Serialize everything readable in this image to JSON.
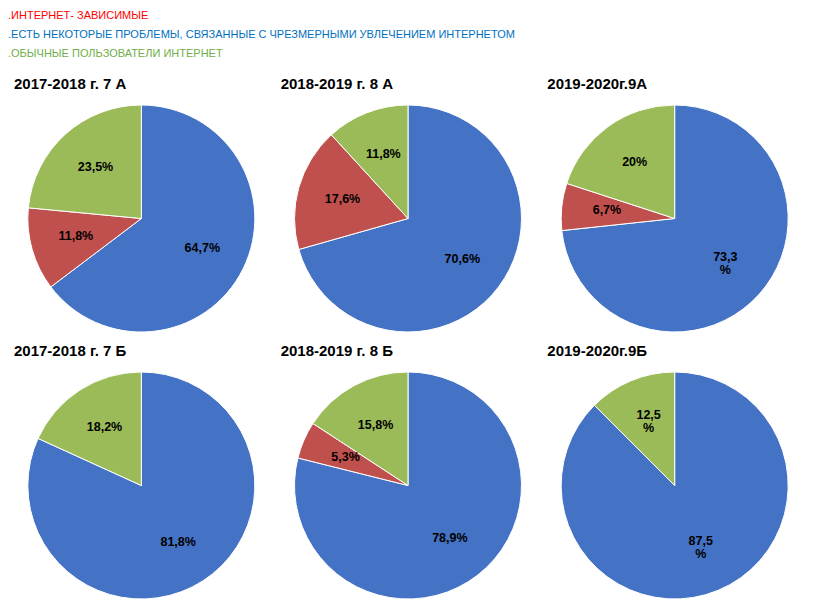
{
  "chart_data": [
    {
      "type": "pie",
      "title": "2017-2018 г. 7 А",
      "values": [
        64.7,
        11.8,
        23.5
      ],
      "value_labels": [
        "64,7%",
        "11,8%",
        "23,5%"
      ],
      "colors": [
        "#4472c4",
        "#c0504d",
        "#9bbb59"
      ],
      "data_labels": true,
      "annotations": [
        {
          "text": ".ИНТЕРНЕТ- ЗАВИСИМЫЕ",
          "color": "#ff0000"
        },
        {
          "text": ".ЕСТЬ НЕКОТОРЫЕ ПРОБЛЕМЫ, СВЯЗАННЫЕ С ЧРЕЗМЕРНЫМИ УВЛЕЧЕНИЕМ ИНТЕРНЕТОМ",
          "color": "#0070c0"
        },
        {
          "text": ".ОБЫЧНЫЕ ПОЛЬЗОВАТЕЛИ ИНТЕРНЕТ",
          "color": "#70ad47"
        }
      ]
    },
    {
      "type": "pie",
      "title": "2018-2019 г. 8 А",
      "values": [
        70.6,
        17.6,
        11.8
      ],
      "value_labels": [
        "70,6%",
        "17,6%",
        "11,8%"
      ],
      "colors": [
        "#4472c4",
        "#c0504d",
        "#9bbb59"
      ],
      "data_labels": true
    },
    {
      "type": "pie",
      "title": "2019-2020г.9А",
      "values": [
        73.3,
        6.7,
        20.0
      ],
      "value_labels": [
        "73,3\n%",
        "6,7%",
        "20%"
      ],
      "colors": [
        "#4472c4",
        "#c0504d",
        "#9bbb59"
      ],
      "data_labels": true
    },
    {
      "type": "pie",
      "title": "2017-2018 г. 7 Б",
      "values": [
        81.8,
        18.2
      ],
      "value_labels": [
        "81,8%",
        "18,2%"
      ],
      "colors": [
        "#4472c4",
        "#9bbb59"
      ],
      "data_labels": true
    },
    {
      "type": "pie",
      "title": "2018-2019 г. 8 Б",
      "values": [
        78.9,
        5.3,
        15.8
      ],
      "value_labels": [
        "78,9%",
        "5,3%",
        "15,8%"
      ],
      "colors": [
        "#4472c4",
        "#c0504d",
        "#9bbb59"
      ],
      "data_labels": true
    },
    {
      "type": "pie",
      "title": "2019-2020г.9Б",
      "values": [
        87.5,
        12.5
      ],
      "value_labels": [
        "87,5\n%",
        "12,5\n%"
      ],
      "colors": [
        "#4472c4",
        "#9bbb59"
      ],
      "data_labels": true
    }
  ]
}
